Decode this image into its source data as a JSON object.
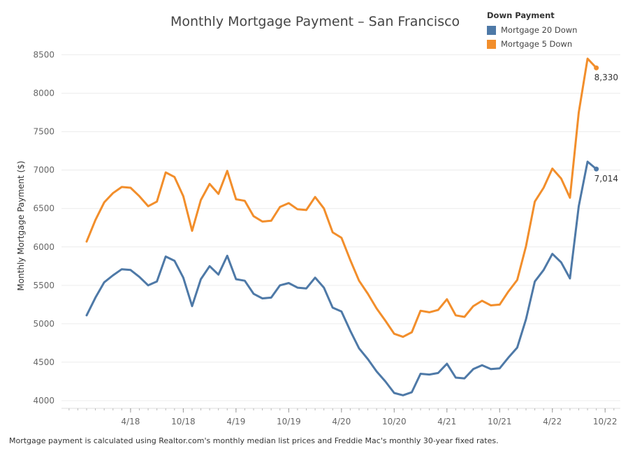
{
  "chart_data": {
    "type": "line",
    "title": "Monthly Mortgage Payment – San Francisco",
    "ylabel": "Monthly Mortgage Payment ($)",
    "xlabel": "",
    "ylim": [
      3900,
      8650
    ],
    "yticks": [
      4000,
      4500,
      5000,
      5500,
      6000,
      6500,
      7000,
      7500,
      8000,
      8500
    ],
    "x_start": "2017-11",
    "x_tick_labels": [
      {
        "label": "4/18",
        "month": "2018-04"
      },
      {
        "label": "10/18",
        "month": "2018-10"
      },
      {
        "label": "4/19",
        "month": "2019-04"
      },
      {
        "label": "10/19",
        "month": "2019-10"
      },
      {
        "label": "4/20",
        "month": "2020-04"
      },
      {
        "label": "10/20",
        "month": "2020-10"
      },
      {
        "label": "4/21",
        "month": "2021-04"
      },
      {
        "label": "10/21",
        "month": "2021-10"
      },
      {
        "label": "4/22",
        "month": "2022-04"
      },
      {
        "label": "10/22",
        "month": "2022-10"
      }
    ],
    "grid": true,
    "legend_title": "Down Payment",
    "legend_position": "top-right",
    "series": [
      {
        "name": "Mortgage 20 Down",
        "color": "#4e79a7",
        "end_label": "7,014",
        "values": [
          5110,
          5340,
          5540,
          5630,
          5710,
          5700,
          5610,
          5500,
          5550,
          5875,
          5820,
          5600,
          5230,
          5580,
          5750,
          5640,
          5885,
          5580,
          5560,
          5390,
          5330,
          5340,
          5500,
          5530,
          5470,
          5460,
          5600,
          5470,
          5210,
          5160,
          4910,
          4680,
          4540,
          4380,
          4250,
          4100,
          4070,
          4110,
          4350,
          4340,
          4360,
          4480,
          4300,
          4290,
          4410,
          4460,
          4410,
          4420,
          4560,
          4690,
          5060,
          5550,
          5700,
          5910,
          5800,
          5590,
          6530,
          7110,
          7014
        ]
      },
      {
        "name": "Mortgage 5 Down",
        "color": "#f28e2b",
        "end_label": "8,330",
        "values": [
          6070,
          6350,
          6580,
          6700,
          6780,
          6770,
          6660,
          6530,
          6590,
          6970,
          6910,
          6660,
          6210,
          6610,
          6820,
          6690,
          6990,
          6620,
          6600,
          6400,
          6330,
          6340,
          6520,
          6570,
          6490,
          6480,
          6650,
          6500,
          6190,
          6120,
          5830,
          5560,
          5390,
          5200,
          5040,
          4870,
          4830,
          4890,
          5170,
          5150,
          5180,
          5320,
          5110,
          5090,
          5230,
          5300,
          5240,
          5250,
          5420,
          5570,
          6010,
          6590,
          6770,
          7020,
          6890,
          6640,
          7750,
          8450,
          8330
        ]
      }
    ]
  },
  "footnote": "Mortgage payment is calculated using Realtor.com's monthly median list prices and Freddie Mac's monthly 30-year fixed rates."
}
